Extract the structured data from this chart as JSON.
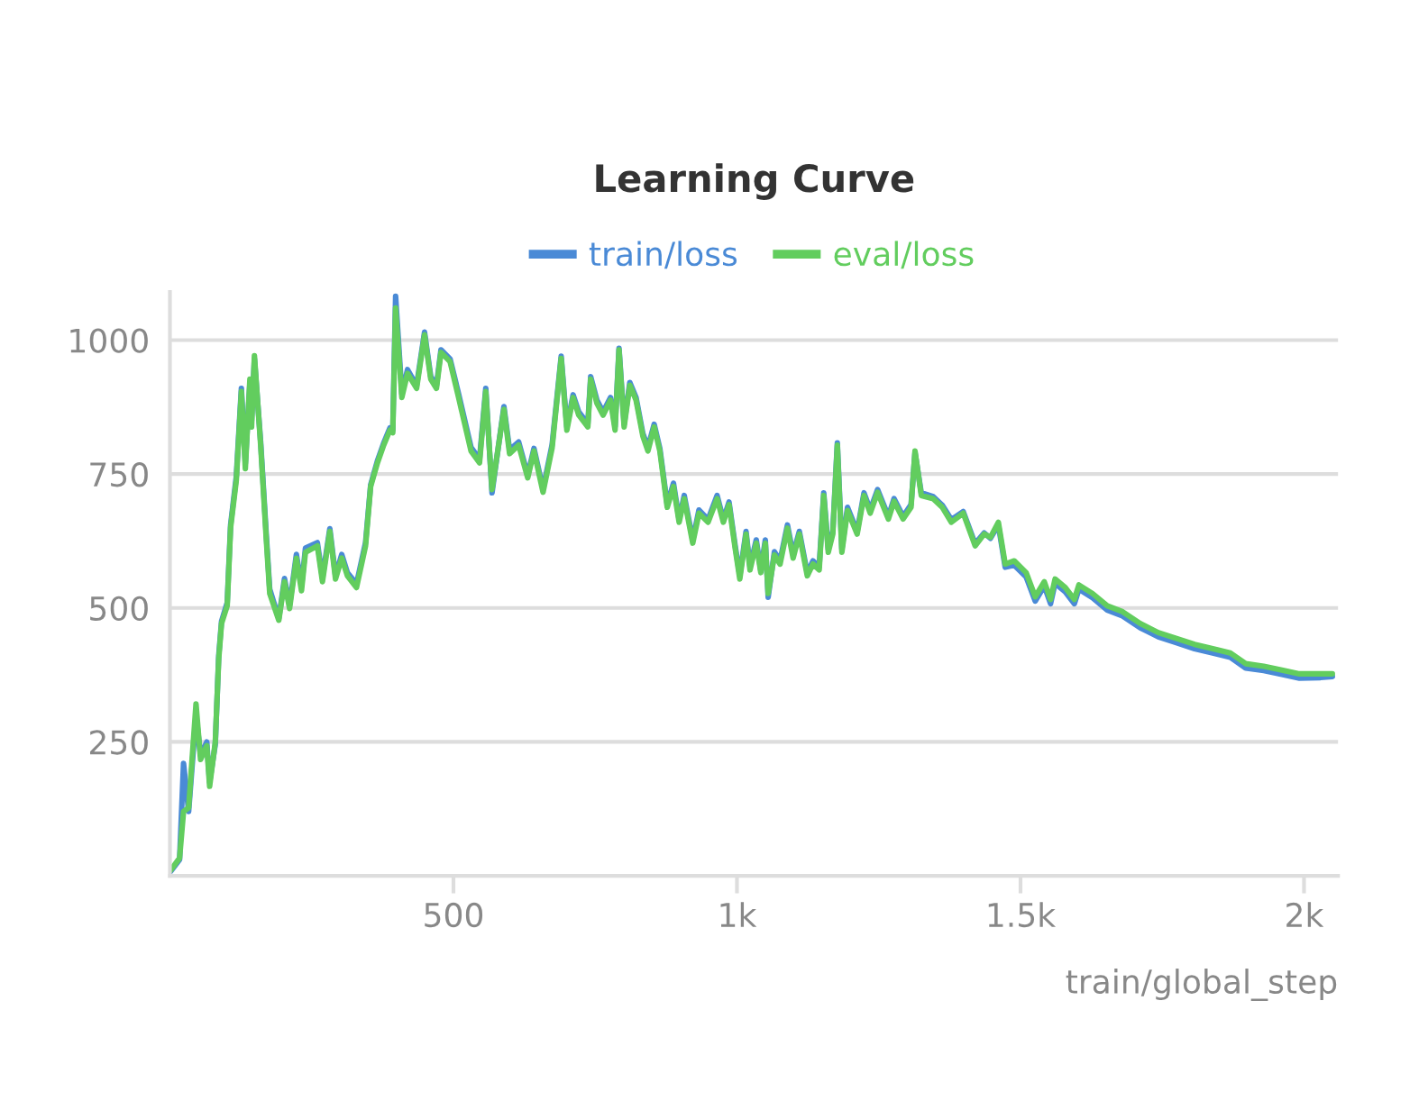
{
  "chart_data": {
    "type": "line",
    "title": "Learning Curve",
    "xlabel": "train/global_step",
    "xlim": [
      0,
      2060
    ],
    "ylim": [
      0,
      1090
    ],
    "xticks": [
      {
        "value": 500,
        "label": "500"
      },
      {
        "value": 1000,
        "label": "1k"
      },
      {
        "value": 1500,
        "label": "1.5k"
      },
      {
        "value": 2000,
        "label": "2k"
      }
    ],
    "yticks": [
      250,
      500,
      750,
      1000
    ],
    "grid": "y",
    "legend": "top",
    "marker": "none",
    "line_style": "solid",
    "x": [
      1,
      17,
      24,
      33,
      46,
      54,
      65,
      70,
      80,
      86,
      91,
      101,
      107,
      117,
      126,
      133,
      141,
      144,
      149,
      160,
      170,
      176,
      192,
      202,
      211,
      223,
      232,
      239,
      260,
      269,
      282,
      292,
      303,
      313,
      329,
      345,
      354,
      366,
      377,
      388,
      393,
      398,
      409,
      419,
      435,
      449,
      460,
      470,
      478,
      494,
      509,
      531,
      546,
      557,
      568,
      589,
      599,
      615,
      631,
      642,
      658,
      674,
      690,
      700,
      711,
      721,
      737,
      742,
      753,
      764,
      777,
      785,
      792,
      801,
      811,
      822,
      834,
      843,
      854,
      864,
      877,
      888,
      898,
      907,
      922,
      933,
      949,
      965,
      976,
      986,
      997,
      1005,
      1016,
      1023,
      1034,
      1042,
      1050,
      1055,
      1066,
      1076,
      1089,
      1099,
      1110,
      1124,
      1134,
      1145,
      1153,
      1161,
      1169,
      1177,
      1185,
      1195,
      1212,
      1224,
      1235,
      1248,
      1267,
      1277,
      1293,
      1307,
      1314,
      1325,
      1346,
      1362,
      1378,
      1399,
      1420,
      1436,
      1447,
      1461,
      1473,
      1489,
      1510,
      1526,
      1542,
      1553,
      1561,
      1579,
      1595,
      1603,
      1627,
      1653,
      1680,
      1711,
      1743,
      1775,
      1807,
      1839,
      1870,
      1897,
      1929,
      1961,
      1992,
      2029,
      2050
    ],
    "series": [
      {
        "name": "train/loss",
        "color": "#4a8ad6",
        "values": [
          8,
          30,
          210,
          120,
          300,
          225,
          250,
          175,
          245,
          410,
          475,
          510,
          655,
          745,
          910,
          770,
          920,
          850,
          965,
          810,
          635,
          535,
          480,
          555,
          505,
          600,
          540,
          612,
          622,
          556,
          648,
          560,
          600,
          566,
          545,
          622,
          730,
          775,
          808,
          836,
          832,
          1082,
          900,
          945,
          915,
          1015,
          932,
          915,
          982,
          965,
          900,
          800,
          778,
          910,
          715,
          876,
          795,
          810,
          748,
          798,
          722,
          805,
          970,
          838,
          898,
          866,
          844,
          932,
          888,
          866,
          893,
          838,
          985,
          843,
          921,
          893,
          826,
          800,
          843,
          798,
          693,
          733,
          665,
          710,
          627,
          683,
          665,
          710,
          665,
          698,
          615,
          560,
          643,
          577,
          627,
          570,
          627,
          520,
          605,
          588,
          655,
          600,
          643,
          565,
          588,
          577,
          715,
          610,
          643,
          808,
          610,
          688,
          643,
          715,
          683,
          721,
          671,
          704,
          671,
          693,
          790,
          715,
          708,
          692,
          665,
          680,
          620,
          640,
          630,
          655,
          576,
          580,
          558,
          513,
          541,
          508,
          546,
          530,
          508,
          535,
          519,
          496,
          485,
          463,
          446,
          435,
          424,
          416,
          408,
          388,
          383,
          376,
          369,
          370,
          372
        ]
      },
      {
        "name": "eval/loss",
        "color": "#62cd5e",
        "values": [
          10,
          33,
          120,
          127,
          321,
          217,
          243,
          167,
          250,
          404,
          471,
          504,
          650,
          738,
          904,
          760,
          927,
          838,
          971,
          804,
          627,
          527,
          477,
          549,
          499,
          593,
          532,
          604,
          616,
          549,
          643,
          554,
          593,
          560,
          538,
          616,
          727,
          771,
          804,
          832,
          827,
          1060,
          893,
          938,
          910,
          1010,
          927,
          910,
          977,
          960,
          893,
          793,
          771,
          904,
          721,
          871,
          788,
          804,
          743,
          793,
          716,
          799,
          966,
          832,
          893,
          860,
          838,
          927,
          882,
          860,
          888,
          832,
          982,
          838,
          916,
          888,
          821,
          793,
          838,
          793,
          688,
          727,
          660,
          704,
          621,
          677,
          660,
          704,
          660,
          693,
          610,
          554,
          638,
          571,
          621,
          566,
          621,
          527,
          599,
          582,
          649,
          593,
          638,
          560,
          582,
          571,
          710,
          604,
          638,
          804,
          604,
          682,
          638,
          710,
          677,
          716,
          666,
          699,
          666,
          688,
          793,
          710,
          704,
          688,
          660,
          677,
          616,
          638,
          632,
          660,
          582,
          588,
          566,
          521,
          549,
          516,
          554,
          538,
          516,
          543,
          527,
          504,
          493,
          471,
          454,
          443,
          432,
          424,
          416,
          396,
          391,
          384,
          377,
          377,
          377
        ]
      }
    ]
  }
}
